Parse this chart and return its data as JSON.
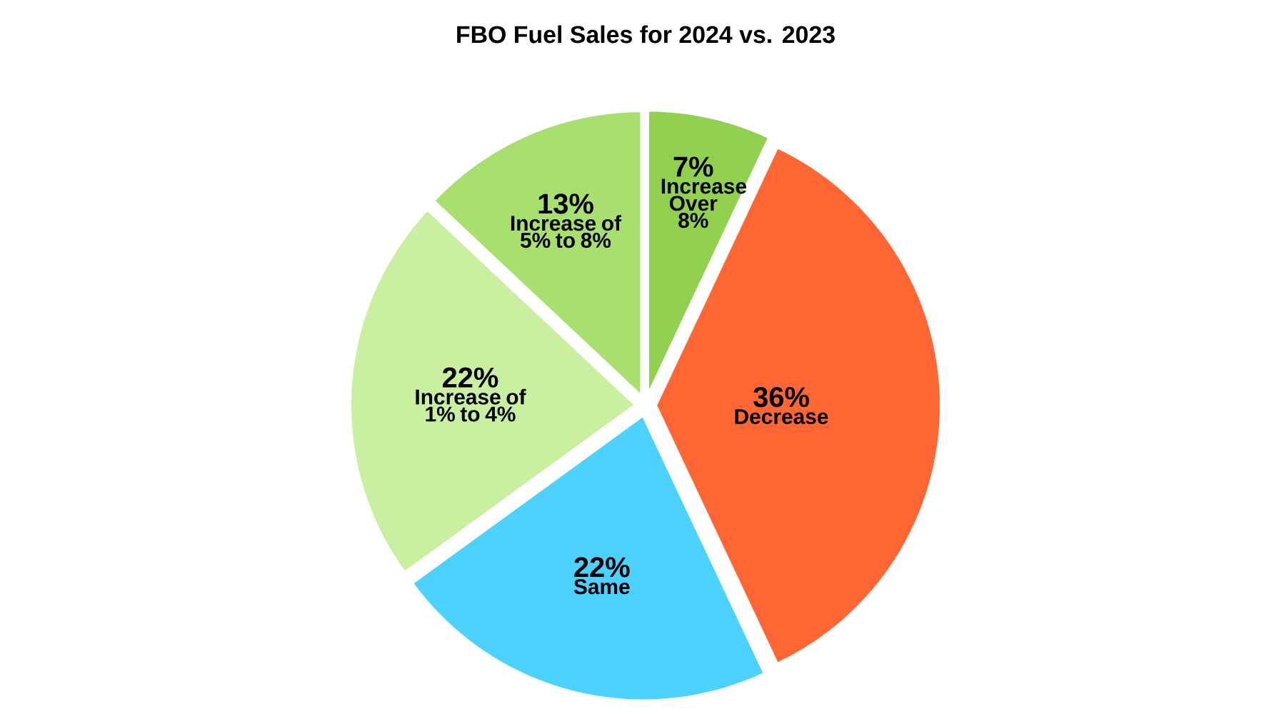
{
  "chart_data": {
    "type": "pie",
    "title": "FBO Fuel Sales for 2024 vs. 2023",
    "categories": [
      "Increase Over 8%",
      "Decrease",
      "Same",
      "Increase of 1% to 4%",
      "Increase of 5% to 8%"
    ],
    "values": [
      7,
      36,
      22,
      22,
      13
    ],
    "value_labels": [
      "7%",
      "36%",
      "22%",
      "22%",
      "13%"
    ],
    "colors": [
      "#92d050",
      "#ff6633",
      "#4dd2ff",
      "#c9f0a0",
      "#a8e070"
    ]
  }
}
